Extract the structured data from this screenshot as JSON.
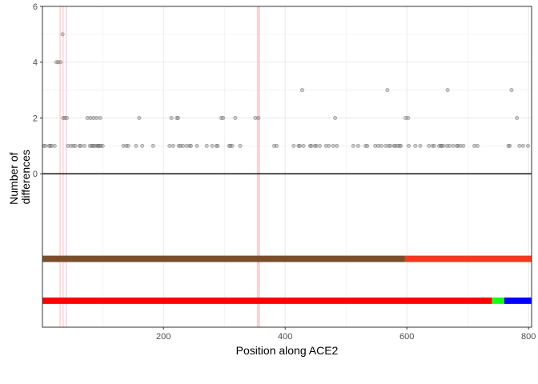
{
  "chart_data": {
    "type": "scatter",
    "title": "",
    "xlabel": "Position along ACE2",
    "ylabel": [
      "Number of",
      "differences"
    ],
    "xlim": [
      1,
      805
    ],
    "ylim": [
      -5.5,
      6
    ],
    "x_ticks": [
      200,
      400,
      600,
      800
    ],
    "y_ticks": [
      0,
      2,
      4,
      6
    ],
    "grid": true,
    "legend": "none",
    "colors": {
      "points": "#808080",
      "highlight": "#f8c8cf",
      "zero_line": "#000000",
      "grid": "#ebebeb",
      "panel_border": "#333333"
    },
    "highlight_positions": [
      30,
      35,
      40,
      356
    ],
    "points": [
      [
        3,
        1
      ],
      [
        6,
        1
      ],
      [
        12,
        1
      ],
      [
        14,
        1
      ],
      [
        16,
        1
      ],
      [
        21,
        1
      ],
      [
        24,
        4
      ],
      [
        27,
        4
      ],
      [
        31,
        4
      ],
      [
        34,
        5
      ],
      [
        35,
        2
      ],
      [
        38,
        2
      ],
      [
        41,
        2
      ],
      [
        43,
        1
      ],
      [
        48,
        1
      ],
      [
        52,
        1
      ],
      [
        55,
        1
      ],
      [
        62,
        1
      ],
      [
        64,
        1
      ],
      [
        70,
        1
      ],
      [
        75,
        2
      ],
      [
        79,
        1
      ],
      [
        80,
        2
      ],
      [
        82,
        1
      ],
      [
        84,
        1
      ],
      [
        85,
        2
      ],
      [
        86,
        1
      ],
      [
        89,
        1
      ],
      [
        90,
        2
      ],
      [
        92,
        1
      ],
      [
        93,
        1
      ],
      [
        95,
        1
      ],
      [
        96,
        2
      ],
      [
        97,
        1
      ],
      [
        100,
        1
      ],
      [
        134,
        1
      ],
      [
        139,
        1
      ],
      [
        142,
        1
      ],
      [
        155,
        1
      ],
      [
        160,
        2
      ],
      [
        165,
        1
      ],
      [
        183,
        1
      ],
      [
        210,
        1
      ],
      [
        213,
        2
      ],
      [
        216,
        1
      ],
      [
        222,
        2
      ],
      [
        224,
        2
      ],
      [
        225,
        1
      ],
      [
        228,
        1
      ],
      [
        232,
        1
      ],
      [
        238,
        1
      ],
      [
        243,
        1
      ],
      [
        245,
        1
      ],
      [
        255,
        1
      ],
      [
        271,
        1
      ],
      [
        280,
        1
      ],
      [
        287,
        1
      ],
      [
        289,
        1
      ],
      [
        295,
        2
      ],
      [
        298,
        2
      ],
      [
        308,
        1
      ],
      [
        310,
        1
      ],
      [
        313,
        1
      ],
      [
        318,
        2
      ],
      [
        326,
        1
      ],
      [
        351,
        2
      ],
      [
        356,
        2
      ],
      [
        382,
        1
      ],
      [
        386,
        1
      ],
      [
        414,
        1
      ],
      [
        422,
        1
      ],
      [
        424,
        1
      ],
      [
        428,
        3
      ],
      [
        430,
        1
      ],
      [
        441,
        1
      ],
      [
        443,
        1
      ],
      [
        449,
        1
      ],
      [
        451,
        1
      ],
      [
        457,
        1
      ],
      [
        467,
        1
      ],
      [
        472,
        1
      ],
      [
        479,
        1
      ],
      [
        482,
        2
      ],
      [
        485,
        1
      ],
      [
        512,
        1
      ],
      [
        520,
        1
      ],
      [
        532,
        1
      ],
      [
        535,
        1
      ],
      [
        548,
        1
      ],
      [
        553,
        1
      ],
      [
        558,
        1
      ],
      [
        565,
        1
      ],
      [
        568,
        3
      ],
      [
        570,
        1
      ],
      [
        573,
        1
      ],
      [
        579,
        1
      ],
      [
        581,
        1
      ],
      [
        585,
        1
      ],
      [
        588,
        1
      ],
      [
        590,
        1
      ],
      [
        598,
        2
      ],
      [
        602,
        2
      ],
      [
        603,
        1
      ],
      [
        614,
        1
      ],
      [
        622,
        1
      ],
      [
        636,
        1
      ],
      [
        642,
        1
      ],
      [
        645,
        1
      ],
      [
        653,
        1
      ],
      [
        656,
        1
      ],
      [
        657,
        1
      ],
      [
        660,
        1
      ],
      [
        666,
        1
      ],
      [
        667,
        3
      ],
      [
        670,
        1
      ],
      [
        676,
        1
      ],
      [
        682,
        1
      ],
      [
        684,
        1
      ],
      [
        688,
        1
      ],
      [
        693,
        1
      ],
      [
        711,
        1
      ],
      [
        716,
        1
      ],
      [
        767,
        1
      ],
      [
        769,
        1
      ],
      [
        772,
        3
      ],
      [
        781,
        2
      ],
      [
        785,
        1
      ],
      [
        791,
        1
      ],
      [
        799,
        1
      ]
    ],
    "domain_bars": [
      {
        "y": -3.05,
        "segments": [
          {
            "start": 1,
            "end": 597,
            "color": "#7a4e2b"
          },
          {
            "start": 597,
            "end": 805,
            "color": "#f0391e"
          }
        ]
      },
      {
        "y": -4.55,
        "segments": [
          {
            "start": 1,
            "end": 740,
            "color": "#ff0000"
          },
          {
            "start": 740,
            "end": 760,
            "color": "#17ff16"
          },
          {
            "start": 760,
            "end": 805,
            "color": "#0000ff"
          }
        ]
      }
    ]
  }
}
